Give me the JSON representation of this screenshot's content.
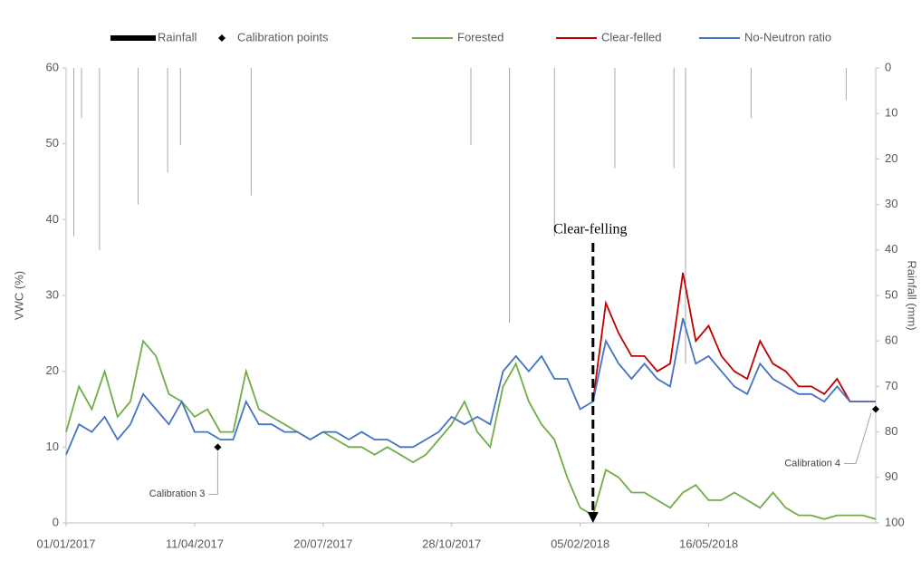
{
  "chart_data": {
    "type": "line",
    "y_label": "VWC (%)",
    "y2_label": "Rainfall (mm)",
    "x": [
      "01/01/2017",
      "11/01/2017",
      "21/01/2017",
      "31/01/2017",
      "10/02/2017",
      "20/02/2017",
      "02/03/2017",
      "12/03/2017",
      "22/03/2017",
      "01/04/2017",
      "11/04/2017",
      "21/04/2017",
      "01/05/2017",
      "11/05/2017",
      "21/05/2017",
      "31/05/2017",
      "10/06/2017",
      "20/06/2017",
      "30/06/2017",
      "10/07/2017",
      "20/07/2017",
      "30/07/2017",
      "09/08/2017",
      "19/08/2017",
      "29/08/2017",
      "08/09/2017",
      "18/09/2017",
      "28/09/2017",
      "08/10/2017",
      "18/10/2017",
      "28/10/2017",
      "07/11/2017",
      "17/11/2017",
      "27/11/2017",
      "07/12/2017",
      "17/12/2017",
      "27/12/2017",
      "06/01/2018",
      "16/01/2018",
      "26/01/2018",
      "05/02/2018",
      "15/02/2018",
      "25/02/2018",
      "07/03/2018",
      "17/03/2018",
      "27/03/2018",
      "06/04/2018",
      "16/04/2018",
      "26/04/2018",
      "06/05/2018",
      "16/05/2018",
      "26/05/2018",
      "05/06/2018",
      "15/06/2018",
      "25/06/2018",
      "05/07/2018",
      "15/07/2018",
      "25/07/2018",
      "04/08/2018",
      "14/08/2018",
      "24/08/2018",
      "03/09/2018",
      "13/09/2018",
      "23/09/2018"
    ],
    "series": [
      {
        "name": "Forested",
        "color": "#70ad47",
        "values": [
          12,
          18,
          15,
          20,
          14,
          16,
          24,
          22,
          17,
          16,
          14,
          15,
          12,
          12,
          20,
          15,
          14,
          13,
          12,
          11,
          12,
          11,
          10,
          10,
          9,
          10,
          9,
          8,
          9,
          11,
          13,
          16,
          12,
          10,
          18,
          21,
          16,
          13,
          11,
          6,
          2,
          1,
          7,
          6,
          4,
          4,
          3,
          2,
          4,
          5,
          3,
          3,
          4,
          3,
          2,
          4,
          2,
          1,
          1,
          0.5,
          1,
          1,
          1,
          0.5
        ]
      },
      {
        "name": "Clear-felled",
        "color": "#c00000",
        "values": [
          null,
          null,
          null,
          null,
          null,
          null,
          null,
          null,
          null,
          null,
          null,
          null,
          null,
          null,
          null,
          null,
          null,
          null,
          null,
          null,
          null,
          null,
          null,
          null,
          null,
          null,
          null,
          null,
          null,
          null,
          null,
          null,
          null,
          null,
          null,
          null,
          null,
          null,
          null,
          null,
          null,
          16,
          29,
          25,
          22,
          22,
          20,
          21,
          33,
          24,
          26,
          22,
          20,
          19,
          24,
          21,
          20,
          18,
          18,
          17,
          19,
          16,
          16,
          16
        ]
      },
      {
        "name": "No-Neutron ratio",
        "color": "#4472c4",
        "values": [
          9,
          13,
          12,
          14,
          11,
          13,
          17,
          15,
          13,
          16,
          12,
          12,
          11,
          11,
          16,
          13,
          13,
          12,
          12,
          11,
          12,
          12,
          11,
          12,
          11,
          11,
          10,
          10,
          11,
          12,
          14,
          13,
          14,
          13,
          20,
          22,
          20,
          22,
          19,
          19,
          15,
          16,
          24,
          21,
          19,
          21,
          19,
          18,
          27,
          21,
          22,
          20,
          18,
          17,
          21,
          19,
          18,
          17,
          17,
          16,
          18,
          16,
          16,
          16
        ]
      }
    ],
    "rainfall": {
      "name": "Rainfall",
      "color": "#a6a6a6",
      "axis": "y2",
      "x": [
        "07/01/2017",
        "13/01/2017",
        "27/01/2017",
        "26/02/2017",
        "21/03/2017",
        "31/03/2017",
        "25/05/2017",
        "12/11/2017",
        "12/12/2017",
        "16/01/2018",
        "04/03/2018",
        "19/04/2018",
        "28/04/2018",
        "18/06/2018",
        "31/08/2018"
      ],
      "values": [
        37,
        11,
        40,
        30,
        23,
        17,
        28,
        17,
        56,
        37,
        22,
        22,
        65,
        11,
        7
      ]
    },
    "calibration": {
      "name": "Calibration points",
      "color": "#000000",
      "x": [
        "29/04/2017",
        "23/09/2018"
      ],
      "values": [
        10,
        15
      ],
      "labels": [
        "Calibration 3",
        "Calibration 4"
      ]
    },
    "annotation": "Clear-felling",
    "annotation_x": "15/02/2018",
    "xlim": [
      "01/01/2017",
      "23/09/2018"
    ],
    "xticks": [
      "01/01/2017",
      "11/04/2017",
      "20/07/2017",
      "28/10/2017",
      "05/02/2018",
      "16/05/2018"
    ],
    "ylim": [
      0,
      60
    ],
    "yticks": [
      0,
      10,
      20,
      30,
      40,
      50,
      60
    ],
    "y2lim": [
      0,
      100
    ],
    "y2ticks": [
      0,
      10,
      20,
      30,
      40,
      50,
      60,
      70,
      80,
      90,
      100
    ],
    "y2_inverted": true
  }
}
